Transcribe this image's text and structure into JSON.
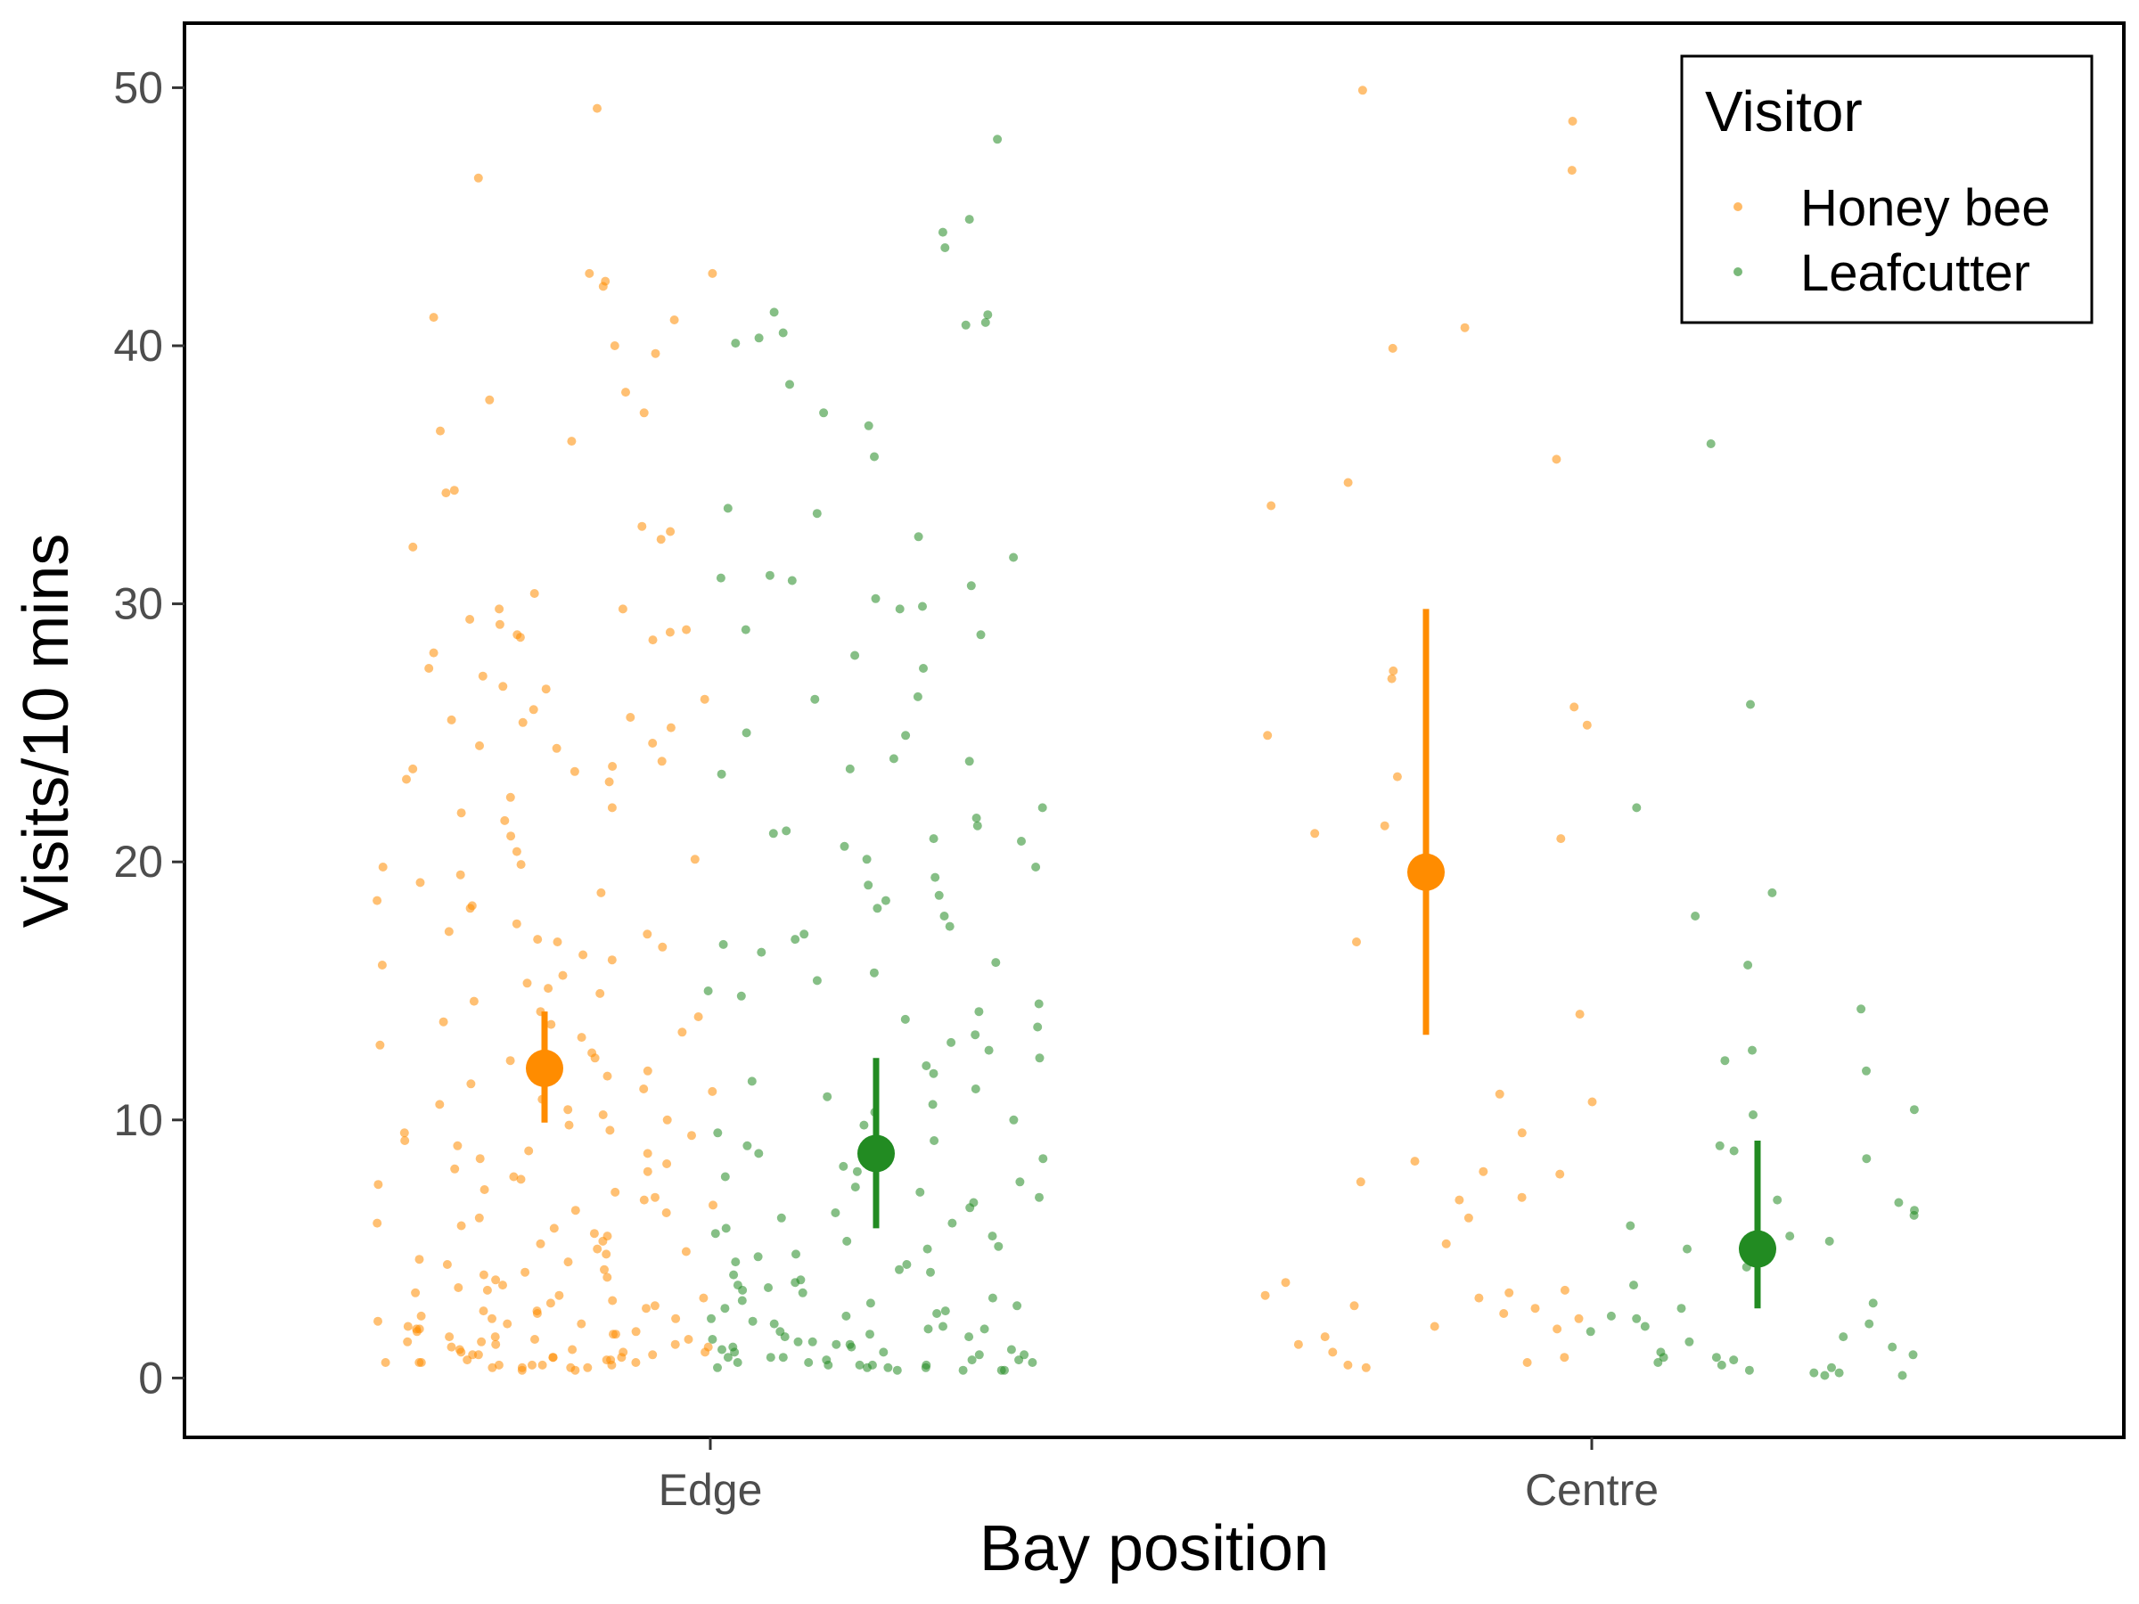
{
  "chart_data": {
    "type": "scatter",
    "subtype": "jittered points with mean and error bars",
    "title": "",
    "xlabel": "Bay position",
    "ylabel": "Visits/10 mins",
    "categories": [
      "Edge",
      "Centre"
    ],
    "ylim": [
      -2.3,
      52.5
    ],
    "yticks": [
      0,
      10,
      20,
      30,
      40,
      50
    ],
    "grid": false,
    "legend": {
      "title": "Visitor",
      "position": "top-right",
      "entries": [
        "Honey bee",
        "Leafcutter"
      ]
    },
    "series": [
      {
        "name": "Honey bee",
        "color": "#ff8c00",
        "summary": [
          {
            "category": "Edge",
            "mean": 12.0,
            "lower": 9.9,
            "upper": 14.2
          },
          {
            "category": "Centre",
            "mean": 19.6,
            "lower": 13.3,
            "upper": 29.8
          }
        ],
        "points": {
          "Edge": [
            49.2,
            46.5,
            42.8,
            42.8,
            42.5,
            42.3,
            41.1,
            41.0,
            40.0,
            39.7,
            38.2,
            37.9,
            37.4,
            36.7,
            36.3,
            34.4,
            34.3,
            33.0,
            32.8,
            32.5,
            32.2,
            30.4,
            29.8,
            29.8,
            29.4,
            29.2,
            29.0,
            28.9,
            28.8,
            28.7,
            28.6,
            28.1,
            27.5,
            27.2,
            26.8,
            26.7,
            26.3,
            25.9,
            25.6,
            25.5,
            25.4,
            25.2,
            24.6,
            24.5,
            24.4,
            23.9,
            23.7,
            23.6,
            23.5,
            23.2,
            23.1,
            22.5,
            22.1,
            21.9,
            21.6,
            21.0,
            20.4,
            20.1,
            19.9,
            19.8,
            19.5,
            19.2,
            18.8,
            18.5,
            18.3,
            18.2,
            17.6,
            17.3,
            17.2,
            17.0,
            16.9,
            16.7,
            16.4,
            16.2,
            16.0,
            15.6,
            15.3,
            15.1,
            14.9,
            14.6,
            14.2,
            14.0,
            13.8,
            13.7,
            13.4,
            13.2,
            12.9,
            12.6,
            12.4,
            12.3,
            11.9,
            11.7,
            11.4,
            11.2,
            11.1,
            10.8,
            10.6,
            10.4,
            10.2,
            10.0,
            9.8,
            9.6,
            9.5,
            9.4,
            9.2,
            9.0,
            8.8,
            8.7,
            8.5,
            8.3,
            8.1,
            8.0,
            7.8,
            7.7,
            7.5,
            7.3,
            7.2,
            7.0,
            6.9,
            6.7,
            6.5,
            6.4,
            6.2,
            6.0,
            5.9,
            5.8,
            5.6,
            5.5,
            5.3,
            5.2,
            5.0,
            4.9,
            4.8,
            4.6,
            4.5,
            4.4,
            4.2,
            4.1,
            4.0,
            3.9,
            3.8,
            3.6,
            3.5,
            3.4,
            3.3,
            3.2,
            3.1,
            3.0,
            2.9,
            2.8,
            2.7,
            2.6,
            2.6,
            2.5,
            2.4,
            2.3,
            2.3,
            2.2,
            2.1,
            2.1,
            2.0,
            1.9,
            1.9,
            1.8,
            1.8,
            1.7,
            1.7,
            1.6,
            1.6,
            1.5,
            1.5,
            1.4,
            1.4,
            1.3,
            1.3,
            1.2,
            1.2,
            1.1,
            1.1,
            1.0,
            1.0,
            1.0,
            0.9,
            0.9,
            0.9,
            0.8,
            0.8,
            0.8,
            0.7,
            0.7,
            0.7,
            0.6,
            0.6,
            0.6,
            0.6,
            0.5,
            0.5,
            0.5,
            0.5,
            0.4,
            0.4,
            0.4,
            0.4,
            0.3,
            0.3
          ],
          "Centre": [
            49.9,
            48.7,
            46.8,
            40.7,
            39.9,
            35.6,
            34.7,
            33.8,
            27.4,
            27.1,
            26.0,
            25.3,
            24.9,
            23.3,
            21.4,
            21.1,
            20.9,
            16.9,
            14.1,
            11.0,
            10.7,
            9.5,
            8.4,
            8.0,
            7.9,
            7.6,
            7.0,
            6.9,
            6.2,
            5.2,
            3.7,
            3.4,
            3.3,
            3.2,
            3.1,
            2.8,
            2.7,
            2.5,
            2.3,
            2.0,
            1.9,
            1.6,
            1.3,
            1.0,
            0.8,
            0.6,
            0.5,
            0.4
          ]
        }
      },
      {
        "name": "Leafcutter",
        "color": "#228b22",
        "summary": [
          {
            "category": "Edge",
            "mean": 8.7,
            "lower": 5.8,
            "upper": 12.4
          },
          {
            "category": "Centre",
            "mean": 5.0,
            "lower": 2.7,
            "upper": 9.2
          }
        ],
        "points": {
          "Edge": [
            48.0,
            44.9,
            44.4,
            43.8,
            41.3,
            41.2,
            40.9,
            40.8,
            40.5,
            40.3,
            40.1,
            38.5,
            37.4,
            36.9,
            35.7,
            33.7,
            33.5,
            32.6,
            31.8,
            31.1,
            31.0,
            30.9,
            30.7,
            30.2,
            29.9,
            29.8,
            29.0,
            28.8,
            28.0,
            27.5,
            26.4,
            26.3,
            25.0,
            24.9,
            24.0,
            23.9,
            23.6,
            23.4,
            22.1,
            21.7,
            21.4,
            21.2,
            21.1,
            20.9,
            20.8,
            20.6,
            20.1,
            19.8,
            19.4,
            19.1,
            18.7,
            18.5,
            18.2,
            17.9,
            17.5,
            17.2,
            17.0,
            16.8,
            16.5,
            16.1,
            15.7,
            15.4,
            15.0,
            14.8,
            14.5,
            14.2,
            13.9,
            13.6,
            13.3,
            13.0,
            12.7,
            12.4,
            12.1,
            11.8,
            11.5,
            11.2,
            10.9,
            10.6,
            10.3,
            10.0,
            9.8,
            9.5,
            9.2,
            9.0,
            8.7,
            8.5,
            8.2,
            8.0,
            7.8,
            7.6,
            7.4,
            7.2,
            7.0,
            6.8,
            6.6,
            6.4,
            6.2,
            6.0,
            5.8,
            5.6,
            5.5,
            5.3,
            5.1,
            5.0,
            4.8,
            4.7,
            4.5,
            4.4,
            4.2,
            4.1,
            4.0,
            3.8,
            3.7,
            3.6,
            3.5,
            3.4,
            3.3,
            3.1,
            3.0,
            2.9,
            2.8,
            2.7,
            2.6,
            2.5,
            2.4,
            2.3,
            2.2,
            2.1,
            2.0,
            1.9,
            1.9,
            1.8,
            1.7,
            1.6,
            1.6,
            1.5,
            1.4,
            1.4,
            1.3,
            1.3,
            1.2,
            1.2,
            1.1,
            1.1,
            1.0,
            1.0,
            0.9,
            0.9,
            0.8,
            0.8,
            0.8,
            0.7,
            0.7,
            0.7,
            0.6,
            0.6,
            0.6,
            0.5,
            0.5,
            0.5,
            0.5,
            0.4,
            0.4,
            0.4,
            0.4,
            0.3,
            0.3,
            0.3,
            0.3
          ],
          "Centre": [
            36.2,
            26.1,
            22.1,
            18.8,
            17.9,
            16.0,
            14.3,
            12.7,
            12.3,
            11.9,
            10.4,
            10.2,
            9.0,
            8.8,
            8.5,
            6.9,
            6.8,
            6.5,
            6.3,
            5.9,
            5.5,
            5.3,
            5.0,
            4.3,
            3.6,
            2.9,
            2.7,
            2.4,
            2.3,
            2.1,
            2.0,
            1.8,
            1.6,
            1.4,
            1.2,
            1.0,
            0.9,
            0.8,
            0.8,
            0.7,
            0.6,
            0.5,
            0.4,
            0.3,
            0.2,
            0.2,
            0.1,
            0.1
          ]
        }
      }
    ]
  }
}
